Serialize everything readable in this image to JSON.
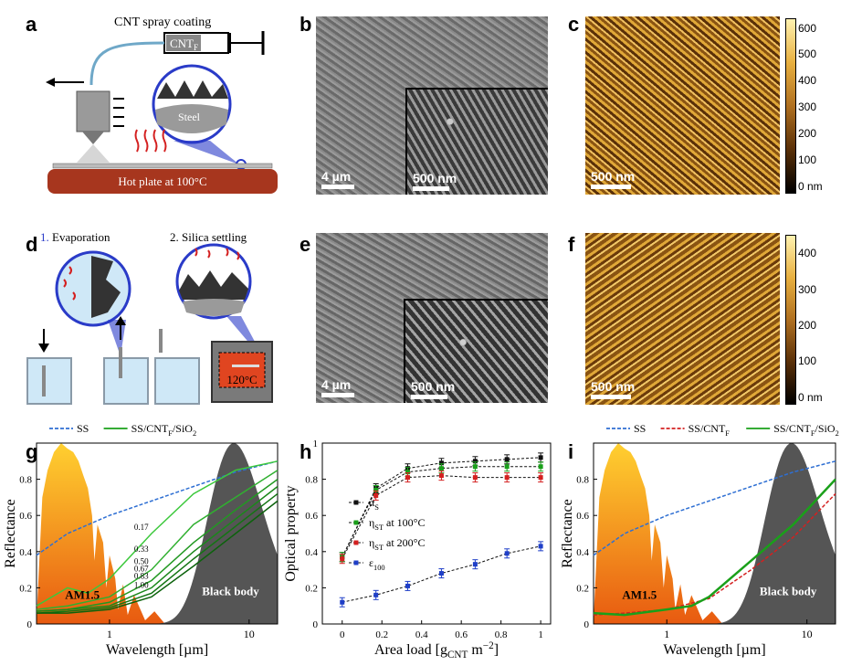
{
  "panel_labels": {
    "a": "a",
    "b": "b",
    "c": "c",
    "d": "d",
    "e": "e",
    "f": "f",
    "g": "g",
    "h": "h",
    "i": "i"
  },
  "panel_a": {
    "title": "CNT spray coating",
    "syringe": "CNT",
    "syringe_sub": "F",
    "steel": "Steel",
    "hotplate": "Hot plate at 100°C"
  },
  "panel_b": {
    "scale_main": "4 µm",
    "scale_inset": "500 nm"
  },
  "panel_c": {
    "scale": "500 nm",
    "colorbar": [
      "600",
      "500",
      "400",
      "300",
      "200",
      "100",
      "0 nm"
    ]
  },
  "panel_d": {
    "step1_num": "1.",
    "step1": " Evaporation",
    "step2": "2. Silica settling",
    "oven": "120°C"
  },
  "panel_e": {
    "scale_main": "4 µm",
    "scale_inset": "500 nm"
  },
  "panel_f": {
    "scale": "500 nm",
    "colorbar": [
      "400",
      "300",
      "200",
      "100",
      "0 nm"
    ]
  },
  "chart_data": [
    {
      "panel": "g",
      "type": "line",
      "xlabel": "Wavelength [µm]",
      "ylabel": "Reflectance",
      "xscale": "log",
      "xlim": [
        0.3,
        16
      ],
      "ylim": [
        0,
        1
      ],
      "yticks": [
        "0",
        "0.2",
        "0.4",
        "0.6",
        "0.8"
      ],
      "xticks": [
        "1",
        "10"
      ],
      "legend": [
        {
          "name": "SS",
          "style": "dashed",
          "color": "#2e6fd3"
        },
        {
          "name": "SS/CNT",
          "sub": "F",
          "tail": "/SiO",
          "sub2": "2",
          "style": "solid",
          "color": "#1aa01a"
        }
      ],
      "annotations": {
        "am": "AM1.5",
        "bb": "Black body",
        "curve_labels": [
          "0.17",
          "0.33",
          "0.50",
          "0.67",
          "0.83",
          "1.00"
        ]
      },
      "series": [
        {
          "name": "SS",
          "x": [
            0.3,
            0.5,
            1,
            2,
            4,
            8,
            16
          ],
          "values": [
            0.38,
            0.5,
            0.6,
            0.68,
            0.76,
            0.84,
            0.9
          ]
        },
        {
          "name": "0.17",
          "x": [
            0.3,
            0.5,
            0.7,
            1,
            2,
            4,
            8,
            16
          ],
          "values": [
            0.1,
            0.2,
            0.17,
            0.25,
            0.5,
            0.72,
            0.85,
            0.9
          ]
        },
        {
          "name": "0.33",
          "x": [
            0.3,
            0.5,
            1,
            2,
            4,
            8,
            16
          ],
          "values": [
            0.08,
            0.1,
            0.15,
            0.3,
            0.55,
            0.7,
            0.85
          ]
        },
        {
          "name": "0.50",
          "x": [
            0.3,
            0.5,
            1,
            2,
            4,
            8,
            16
          ],
          "values": [
            0.07,
            0.08,
            0.12,
            0.24,
            0.45,
            0.63,
            0.8
          ]
        },
        {
          "name": "0.67",
          "x": [
            0.3,
            0.5,
            1,
            2,
            4,
            8,
            16
          ],
          "values": [
            0.07,
            0.08,
            0.1,
            0.2,
            0.4,
            0.58,
            0.76
          ]
        },
        {
          "name": "0.83",
          "x": [
            0.3,
            0.5,
            1,
            2,
            4,
            8,
            16
          ],
          "values": [
            0.06,
            0.07,
            0.09,
            0.17,
            0.36,
            0.54,
            0.72
          ]
        },
        {
          "name": "1.00",
          "x": [
            0.3,
            0.5,
            1,
            2,
            4,
            8,
            16
          ],
          "values": [
            0.06,
            0.06,
            0.08,
            0.15,
            0.32,
            0.5,
            0.68
          ]
        }
      ]
    },
    {
      "panel": "h",
      "type": "scatter",
      "xlabel": "Area load [g",
      "xlabel_sub": "CNT",
      "xlabel_tail": " m",
      "xlabel_sup": "−2",
      "xlabel_end": "]",
      "ylabel": "Optical property",
      "xlim": [
        -0.1,
        1.05
      ],
      "ylim": [
        0,
        1
      ],
      "xticks": [
        "0",
        "0.2",
        "0.4",
        "0.6",
        "0.8",
        "1"
      ],
      "yticks": [
        "0",
        "0.2",
        "0.4",
        "0.6",
        "0.8",
        "1"
      ],
      "x": [
        0,
        0.17,
        0.33,
        0.5,
        0.67,
        0.83,
        1
      ],
      "series": [
        {
          "name": "α",
          "sub": "S",
          "color": "#111111",
          "values": [
            0.37,
            0.75,
            0.86,
            0.89,
            0.9,
            0.91,
            0.92
          ]
        },
        {
          "name": "η",
          "sub": "ST",
          "tail": " at 100°C",
          "color": "#1aa01a",
          "values": [
            0.37,
            0.74,
            0.84,
            0.86,
            0.87,
            0.87,
            0.87
          ]
        },
        {
          "name": "η",
          "sub": "ST",
          "tail": " at 200°C",
          "color": "#d42020",
          "values": [
            0.36,
            0.71,
            0.81,
            0.82,
            0.81,
            0.81,
            0.81
          ]
        },
        {
          "name": "ε",
          "sub": "100",
          "color": "#1f3fc8",
          "values": [
            0.12,
            0.16,
            0.21,
            0.28,
            0.33,
            0.39,
            0.43
          ]
        }
      ]
    },
    {
      "panel": "i",
      "type": "line",
      "xlabel": "Wavelength [µm]",
      "ylabel": "Reflectance",
      "xscale": "log",
      "xlim": [
        0.3,
        16
      ],
      "ylim": [
        0,
        1
      ],
      "yticks": [
        "0",
        "0.2",
        "0.4",
        "0.6",
        "0.8"
      ],
      "xticks": [
        "1",
        "10"
      ],
      "legend": [
        {
          "name": "SS",
          "style": "dashed",
          "color": "#2e6fd3"
        },
        {
          "name": "SS/CNT",
          "sub": "F",
          "style": "dashed",
          "color": "#d42020"
        },
        {
          "name": "SS/CNT",
          "sub": "F",
          "tail": "/SiO",
          "sub2": "2",
          "style": "solid",
          "color": "#1aa01a"
        }
      ],
      "annotations": {
        "am": "AM1.5",
        "bb": "Black body"
      },
      "series": [
        {
          "name": "SS",
          "x": [
            0.3,
            0.5,
            1,
            2,
            4,
            8,
            16
          ],
          "values": [
            0.38,
            0.5,
            0.6,
            0.68,
            0.76,
            0.84,
            0.9
          ]
        },
        {
          "name": "SS/CNTF",
          "x": [
            0.3,
            0.5,
            1,
            2,
            4,
            8,
            16
          ],
          "values": [
            0.05,
            0.06,
            0.08,
            0.14,
            0.3,
            0.48,
            0.72
          ]
        },
        {
          "name": "SS/CNTF/SiO2",
          "x": [
            0.3,
            0.5,
            1,
            1.5,
            2,
            4,
            8,
            16
          ],
          "values": [
            0.06,
            0.05,
            0.08,
            0.1,
            0.15,
            0.35,
            0.55,
            0.8
          ]
        }
      ]
    }
  ]
}
